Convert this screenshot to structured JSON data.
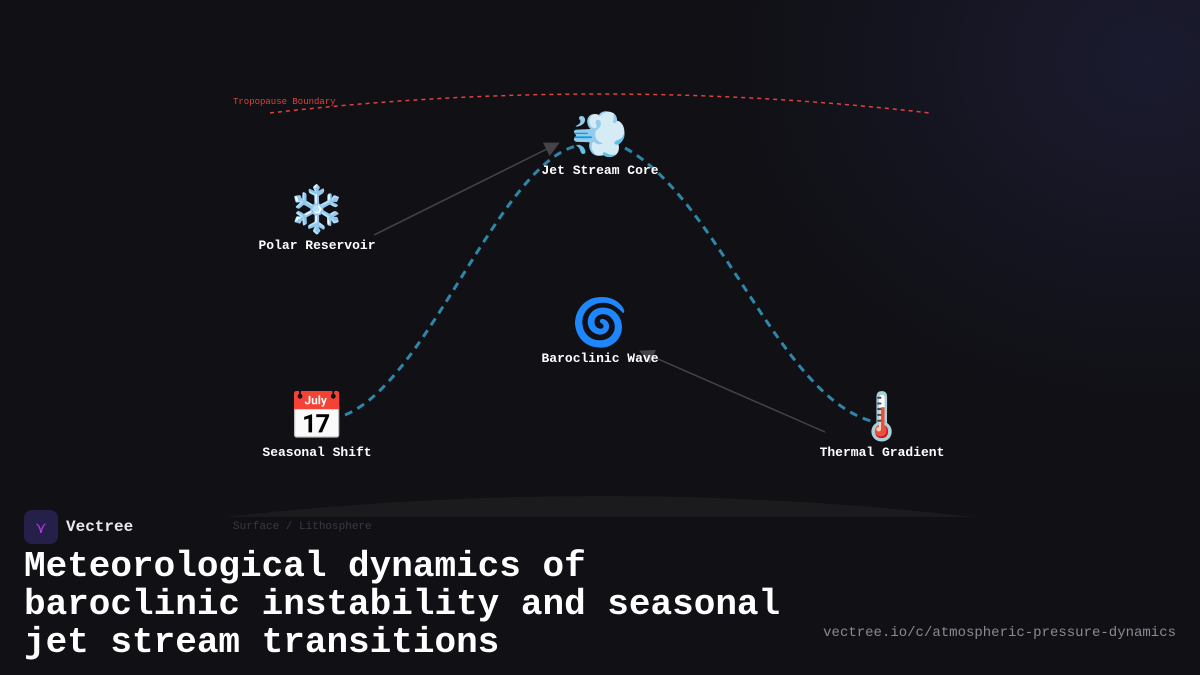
{
  "diagram": {
    "boundaries": {
      "top": "Tropopause Boundary",
      "bottom": "Surface / Lithosphere"
    },
    "nodes": [
      {
        "id": "polar",
        "label": "Polar Reservoir",
        "icon": "snowflake-icon",
        "emoji": "❄️"
      },
      {
        "id": "jet",
        "label": "Jet Stream Core",
        "icon": "wind-icon",
        "emoji": "💨"
      },
      {
        "id": "wave",
        "label": "Baroclinic Wave",
        "icon": "cyclone-icon",
        "emoji": "🌀"
      },
      {
        "id": "season",
        "label": "Seasonal Shift",
        "icon": "calendar-icon",
        "emoji": "📅"
      },
      {
        "id": "thermal",
        "label": "Thermal Gradient",
        "icon": "thermometer-icon",
        "emoji": "🌡️"
      }
    ],
    "edges": [
      {
        "from": "polar",
        "to": "jet"
      },
      {
        "from": "thermal",
        "to": "wave"
      }
    ],
    "colors": {
      "jet_path": "#2e86a8",
      "tropopause": "#e0403f",
      "arrow": "#444448"
    }
  },
  "brand": {
    "name": "Vectree",
    "logo": "V"
  },
  "title": "Meteorological dynamics of baroclinic instability and seasonal jet stream transitions",
  "url": "vectree.io/c/atmospheric-pressure-dynamics"
}
